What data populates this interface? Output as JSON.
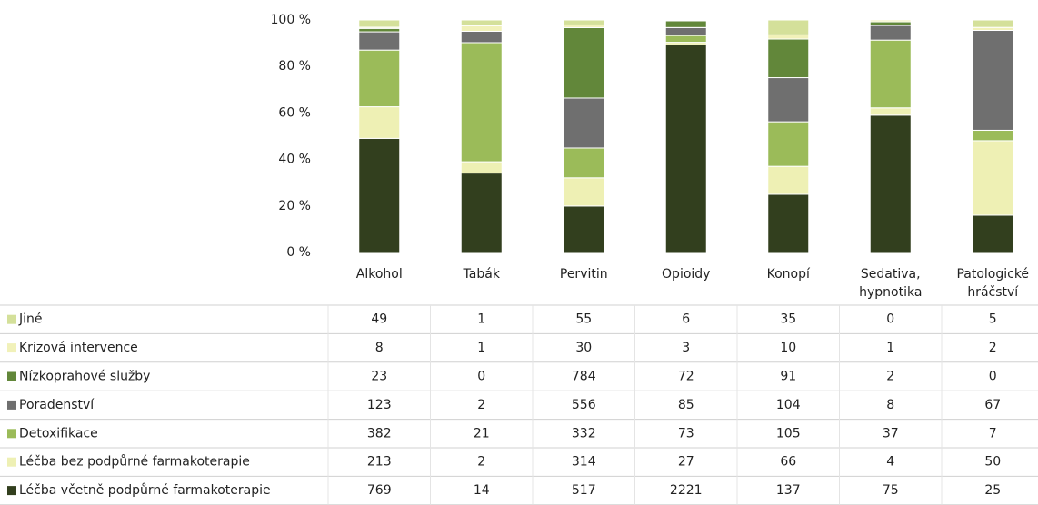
{
  "chart_data": {
    "type": "bar",
    "stacking": "percent",
    "categories": [
      "Alkohol",
      "Tabák",
      "Pervitin",
      "Opioidy",
      "Konopí",
      "Sedativa, hypnotika",
      "Patologické hráčství"
    ],
    "series": [
      {
        "name": "Jiné",
        "color": "#d4e09a",
        "values": [
          49,
          1,
          55,
          6,
          35,
          0,
          5
        ]
      },
      {
        "name": "Krizová intervence",
        "color": "#f1f1b9",
        "values": [
          8,
          1,
          30,
          3,
          10,
          1,
          2
        ]
      },
      {
        "name": "Nízkoprahové služby",
        "color": "#62873a",
        "values": [
          23,
          0,
          784,
          72,
          91,
          2,
          0
        ]
      },
      {
        "name": "Poradenství",
        "color": "#6f6f6f",
        "values": [
          123,
          2,
          556,
          85,
          104,
          8,
          67
        ]
      },
      {
        "name": "Detoxifikace",
        "color": "#9bbb59",
        "values": [
          382,
          21,
          332,
          73,
          105,
          37,
          7
        ]
      },
      {
        "name": "Léčba bez podpůrné farmakoterapie",
        "color": "#eef0b4",
        "values": [
          213,
          2,
          314,
          27,
          66,
          4,
          50
        ]
      },
      {
        "name": "Léčba včetně podpůrné farmakoterapie",
        "color": "#323f1e",
        "values": [
          769,
          14,
          517,
          2221,
          137,
          75,
          25
        ]
      }
    ],
    "ylim": [
      0,
      100
    ],
    "yticks": [
      {
        "value": 0,
        "label": "0 %"
      },
      {
        "value": 20,
        "label": "20 %"
      },
      {
        "value": 40,
        "label": "40 %"
      },
      {
        "value": 60,
        "label": "60 %"
      },
      {
        "value": 80,
        "label": "80 %"
      },
      {
        "value": 100,
        "label": "100 %"
      }
    ]
  }
}
